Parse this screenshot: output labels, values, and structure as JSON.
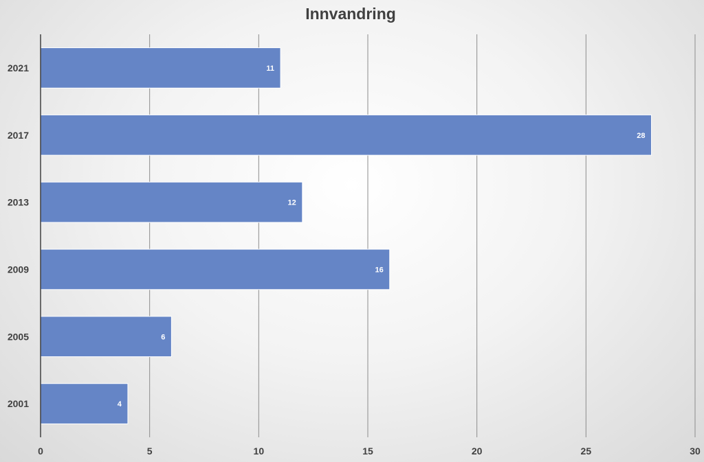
{
  "chart_data": {
    "type": "bar",
    "orientation": "horizontal",
    "title": "Innvandring",
    "categories": [
      "2021",
      "2017",
      "2013",
      "2009",
      "2005",
      "2001"
    ],
    "values": [
      11,
      28,
      12,
      16,
      6,
      4
    ],
    "xlim": [
      0,
      30
    ],
    "x_ticks": [
      0,
      5,
      10,
      15,
      20,
      25,
      30
    ],
    "grid": "vertical",
    "legend": "none",
    "data_labels": true,
    "colors": {
      "bar": "#6585c6",
      "bar_edge": "#ffffff",
      "grid": "#8c8c8c",
      "axis": "#404040",
      "text": "#404040",
      "data_label": "#ffffff"
    }
  }
}
